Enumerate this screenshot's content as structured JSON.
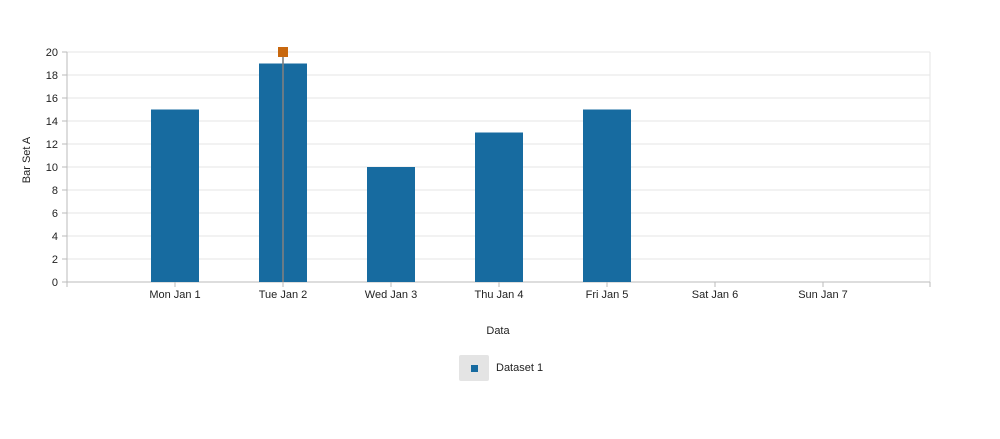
{
  "chart_data": {
    "type": "bar",
    "categories": [
      "Mon Jan 1",
      "Tue Jan 2",
      "Wed Jan 3",
      "Thu Jan 4",
      "Fri Jan 5",
      "Sat Jan 6",
      "Sun Jan 7"
    ],
    "series": [
      {
        "name": "Dataset 1",
        "values": [
          15,
          19,
          10,
          13,
          15,
          0,
          0
        ]
      }
    ],
    "xlabel": "Data",
    "ylabel": "Bar Set A",
    "ylim": [
      0,
      20
    ],
    "yticks": [
      0,
      2,
      4,
      6,
      8,
      10,
      12,
      14,
      16,
      18,
      20
    ],
    "grid": true,
    "legend_position": "bottom",
    "highlight": {
      "category": "Tue Jan 2",
      "marker_value": 20
    },
    "colors": {
      "bar": "#176ba0",
      "highlight_marker": "#c8680f",
      "grid": "#e6e6e6",
      "axis": "#bbbbbb"
    }
  }
}
